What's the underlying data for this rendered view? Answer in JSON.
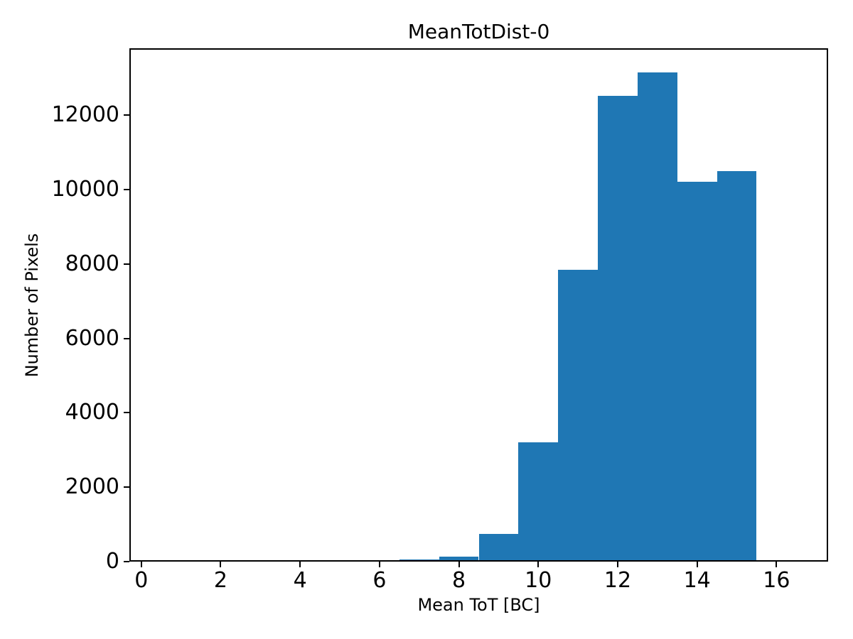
{
  "figure": {
    "background": "#ffffff",
    "axis_color": "#000000"
  },
  "chart_data": {
    "type": "bar",
    "subtype": "histogram",
    "title": "MeanTotDist-0",
    "xlabel": "Mean ToT [BC]",
    "ylabel": "Number of Pixels",
    "bar_color": "#1f77b4",
    "bin_edges": [
      6.5,
      7.5,
      8.5,
      9.5,
      10.5,
      11.5,
      12.5,
      13.5,
      14.5,
      15.5
    ],
    "values": [
      60,
      130,
      740,
      3200,
      7850,
      12520,
      13150,
      10210,
      10500
    ],
    "xlim": [
      -0.3,
      17.3
    ],
    "ylim": [
      0,
      13800
    ],
    "xticks": [
      0,
      2,
      4,
      6,
      8,
      10,
      12,
      14,
      16
    ],
    "yticks": [
      0,
      2000,
      4000,
      6000,
      8000,
      10000,
      12000
    ],
    "grid": false,
    "legend_position": "none"
  }
}
